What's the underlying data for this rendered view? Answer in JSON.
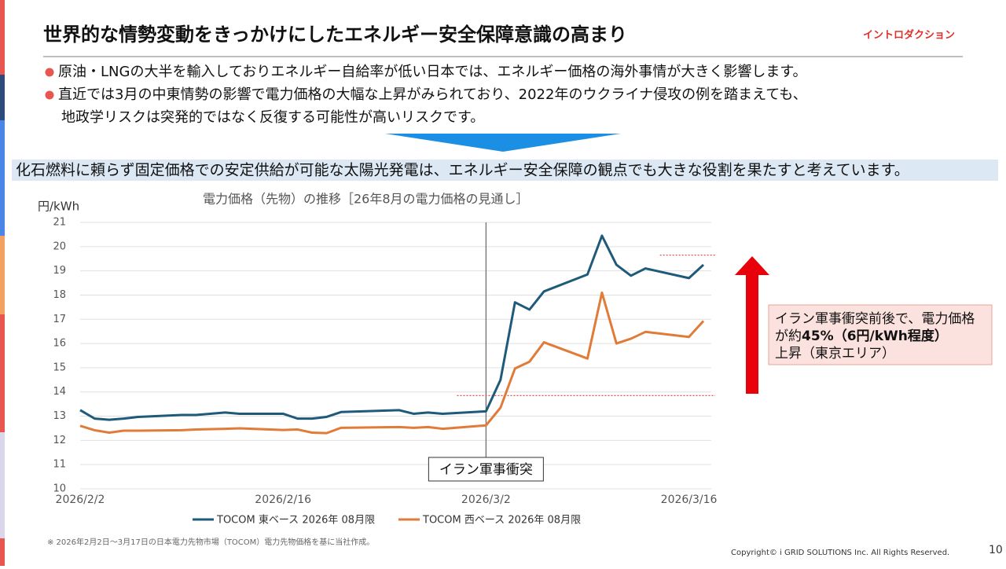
{
  "header": {
    "title": "世界的な情勢変動をきっかけにしたエネルギー安全保障意識の高まり",
    "tag": "イントロダクション"
  },
  "bullets": [
    {
      "lines": [
        "原油・LNGの大半を輸入しておりエネルギー自給率が低い日本では、エネルギー価格の海外事情が大きく影響します。"
      ]
    },
    {
      "lines": [
        "直近では3月の中東情勢の影響で電力価格の大幅な上昇がみられており、2022年のウクライナ侵攻の例を踏まえても、",
        "地政学リスクは突発的ではなく反復する可能性が高いリスクです。"
      ]
    }
  ],
  "conclusion": "化石燃料に頼らず固定価格での安定供給が可能な太陽光発電は、エネルギー安全保障の観点でも大きな役割を果たすと考えています。",
  "chart_data": {
    "type": "line",
    "title": "電力価格（先物）の推移［26年8月の電力価格の見通し］",
    "y_label": "円/kWh",
    "x": [
      "2026/2/2",
      "2026/2/3",
      "2026/2/4",
      "2026/2/5",
      "2026/2/6",
      "2026/2/9",
      "2026/2/10",
      "2026/2/12",
      "2026/2/13",
      "2026/2/16",
      "2026/2/17",
      "2026/2/18",
      "2026/2/19",
      "2026/2/20",
      "2026/2/24",
      "2026/2/25",
      "2026/2/26",
      "2026/2/27",
      "2026/3/2",
      "2026/3/3",
      "2026/3/4",
      "2026/3/5",
      "2026/3/6",
      "2026/3/9",
      "2026/3/10",
      "2026/3/11",
      "2026/3/12",
      "2026/3/13",
      "2026/3/16",
      "2026/3/17"
    ],
    "series": [
      {
        "name": "TOCOM 東ベース 2026年 08月限",
        "color": "#1f5a7a",
        "values": [
          13.25,
          12.9,
          12.85,
          12.9,
          12.97,
          13.05,
          13.05,
          13.15,
          13.1,
          13.1,
          12.9,
          12.9,
          12.97,
          13.17,
          13.25,
          13.1,
          13.15,
          13.1,
          13.2,
          14.5,
          17.7,
          17.4,
          18.15,
          18.85,
          20.45,
          19.25,
          18.8,
          19.1,
          18.7,
          19.25
        ]
      },
      {
        "name": "TOCOM 西ベース 2026年 08月限",
        "color": "#e07b39",
        "values": [
          12.6,
          12.42,
          12.32,
          12.4,
          12.4,
          12.42,
          12.45,
          12.48,
          12.5,
          12.43,
          12.45,
          12.32,
          12.3,
          12.52,
          12.55,
          12.52,
          12.55,
          12.48,
          12.62,
          13.35,
          14.97,
          15.25,
          16.05,
          15.38,
          18.1,
          16.0,
          16.2,
          16.48,
          16.27,
          16.93
        ]
      }
    ],
    "xlim": [
      "2026/2/2",
      "2026/3/17"
    ],
    "xticks": [
      "2026/2/2",
      "2026/2/16",
      "2026/3/2",
      "2026/3/16"
    ],
    "ylim": [
      10,
      21
    ],
    "yticks": [
      10,
      11,
      12,
      13,
      14,
      15,
      16,
      17,
      18,
      19,
      20,
      21
    ],
    "grid": true,
    "event": {
      "x": "2026/3/2",
      "label": "イラン軍事衝突"
    },
    "ref_lines": [
      {
        "value": 19.65,
        "x_from": "2026/3/14"
      },
      {
        "value": 13.85,
        "x_from": "2026/2/28"
      }
    ],
    "ref_color": "#e05050",
    "callout": {
      "line1": "イラン軍事衝突前後で、電力価格",
      "line2_prefix": "が約",
      "line2_bold": "45%（6円/kWh程度）",
      "line3": "上昇（東京エリア）"
    }
  },
  "footnote": "※ 2026年2月2日～3月17日の日本電力先物市場（TOCOM）電力先物価格を基に当社作成。",
  "copyright": "Copyright© i GRID SOLUTIONS Inc. All Rights Reserved.",
  "page_number": "10"
}
